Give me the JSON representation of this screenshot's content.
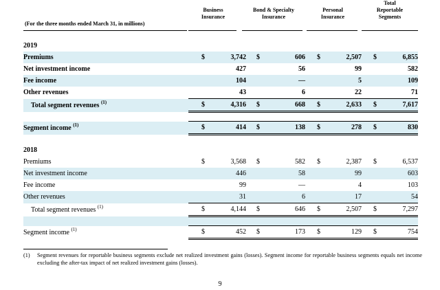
{
  "header": {
    "period": "(For the three months ended March 31, in millions)",
    "columns": [
      [
        "Business",
        "Insurance"
      ],
      [
        "Bond & Specialty",
        "Insurance"
      ],
      [
        "Personal",
        "Insurance"
      ],
      [
        "Total",
        "Reportable",
        "Segments"
      ]
    ]
  },
  "y2019": {
    "year": "2019",
    "currency": "$",
    "rows": [
      {
        "label": "Premiums",
        "v": [
          "3,742",
          "606",
          "2,507",
          "6,855"
        ]
      },
      {
        "label": "Net investment income",
        "v": [
          "427",
          "56",
          "99",
          "582"
        ]
      },
      {
        "label": "Fee income",
        "v": [
          "104",
          "—",
          "5",
          "109"
        ]
      },
      {
        "label": "Other revenues",
        "v": [
          "43",
          "6",
          "22",
          "71"
        ]
      }
    ],
    "total": {
      "label": "Total segment revenues",
      "v": [
        "4,316",
        "668",
        "2,633",
        "7,617"
      ]
    },
    "segment_income": {
      "label": "Segment income",
      "v": [
        "414",
        "138",
        "278",
        "830"
      ]
    }
  },
  "y2018": {
    "year": "2018",
    "currency": "$",
    "rows": [
      {
        "label": "Premiums",
        "v": [
          "3,568",
          "582",
          "2,387",
          "6,537"
        ]
      },
      {
        "label": "Net investment income",
        "v": [
          "446",
          "58",
          "99",
          "603"
        ]
      },
      {
        "label": "Fee income",
        "v": [
          "99",
          "—",
          "4",
          "103"
        ]
      },
      {
        "label": "Other revenues",
        "v": [
          "31",
          "6",
          "17",
          "54"
        ]
      }
    ],
    "total": {
      "label": "Total segment revenues",
      "v": [
        "4,144",
        "646",
        "2,507",
        "7,297"
      ]
    },
    "segment_income": {
      "label": "Segment income",
      "v": [
        "452",
        "173",
        "129",
        "754"
      ]
    }
  },
  "footnote_marker": "(1)",
  "footnote": {
    "marker": "(1)",
    "text": "Segment revenues for reportable business segments exclude net realized investment gains (losses). Segment income for reportable business segments equals net income excluding the after-tax impact of net realized investment gains (losses)."
  },
  "page_number": "9"
}
